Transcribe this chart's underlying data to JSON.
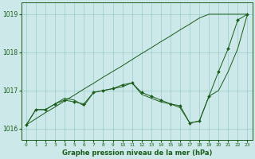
{
  "x": [
    0,
    1,
    2,
    3,
    4,
    5,
    6,
    7,
    8,
    9,
    10,
    11,
    12,
    13,
    14,
    15,
    16,
    17,
    18,
    19,
    20,
    21,
    22,
    23
  ],
  "line_marker": [
    1016.1,
    1016.5,
    1016.5,
    1016.65,
    1016.75,
    1016.7,
    1016.65,
    1016.95,
    1017.0,
    1017.05,
    1017.15,
    1017.2,
    1016.95,
    1016.85,
    1016.75,
    1016.65,
    1016.6,
    1016.15,
    1016.2,
    1016.85,
    1017.5,
    1018.1,
    1018.85,
    1019.0
  ],
  "line_plain": [
    1016.1,
    1016.5,
    1016.5,
    1016.65,
    1016.8,
    1016.75,
    1016.6,
    1016.95,
    1017.0,
    1017.05,
    1017.1,
    1017.2,
    1016.9,
    1016.8,
    1016.7,
    1016.65,
    1016.55,
    1016.15,
    1016.2,
    1016.85,
    1017.0,
    1017.5,
    1018.1,
    1019.0
  ],
  "line_straight": [
    1016.1,
    1016.26,
    1016.42,
    1016.57,
    1016.73,
    1016.88,
    1017.04,
    1017.19,
    1017.35,
    1017.5,
    1017.65,
    1017.81,
    1017.97,
    1018.12,
    1018.28,
    1018.43,
    1018.59,
    1018.74,
    1018.9,
    1019.0,
    1019.0,
    1019.0,
    1019.0,
    1019.0
  ],
  "background_color": "#cce8e8",
  "grid_color": "#99cccc",
  "line_color": "#1a5c1a",
  "xlabel": "Graphe pression niveau de la mer (hPa)",
  "ylim_min": 1015.7,
  "ylim_max": 1019.3,
  "yticks": [
    1016,
    1017,
    1018,
    1019
  ],
  "xlim_min": -0.5,
  "xlim_max": 23.5,
  "ytick_fontsize": 5.5,
  "xtick_fontsize": 4.2,
  "xlabel_fontsize": 6.0
}
